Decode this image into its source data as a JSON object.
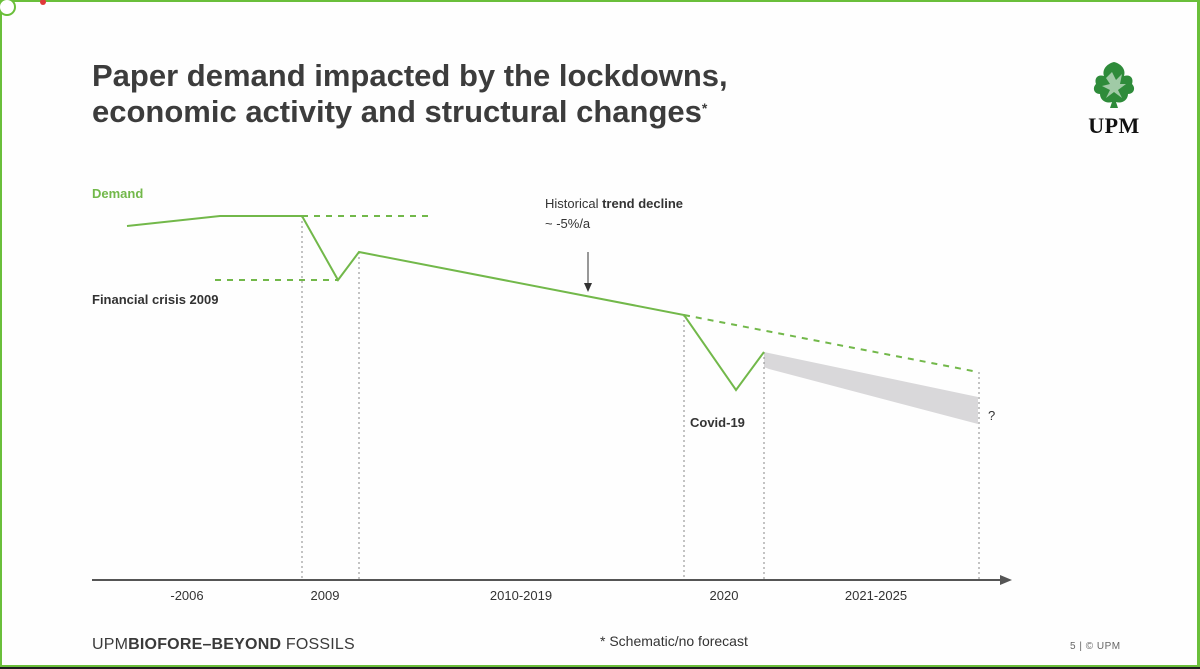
{
  "slide": {
    "title_line1": "Paper demand impacted by the lockdowns,",
    "title_line2": "economic activity and structural changes",
    "title_marker": "*",
    "logo_text": "UPM"
  },
  "footer": {
    "brand_prefix": "UPM",
    "brand_bold": "BIOFORE–BEYOND",
    "brand_suffix": " FOSSILS",
    "note": "* Schematic/no forecast",
    "page": "5 | © UPM"
  },
  "colors": {
    "demand_line": "#72b84a",
    "forecast_band": "#d9d8da",
    "axis": "#555555",
    "text": "#333333",
    "frame": "#6abf3a"
  },
  "chart_data": {
    "type": "line",
    "title": "",
    "ylabel": "Demand",
    "categories": [
      "-2006",
      "2009",
      "2010-2019",
      "2020",
      "2021-2025"
    ],
    "annotations": {
      "financial_crisis": "Financial crisis 2009",
      "trend_prefix": "Historical ",
      "trend_bold": "trend decline",
      "trend_rate": "~ -5%/a",
      "covid": "Covid-19",
      "question": "?"
    },
    "note": "schematic"
  }
}
